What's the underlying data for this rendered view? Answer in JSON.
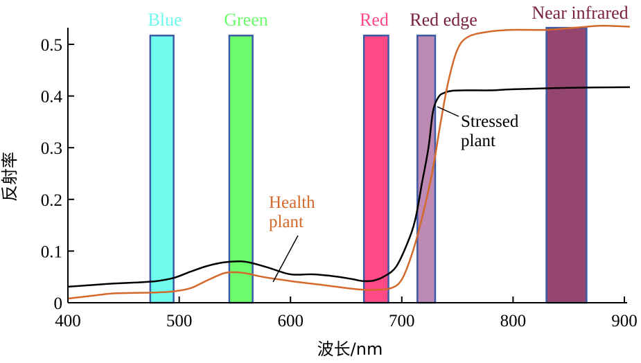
{
  "chart_data": {
    "type": "line",
    "xlabel": "波长/nm",
    "ylabel": "反射率",
    "xlim": [
      400,
      905
    ],
    "ylim": [
      0,
      0.55
    ],
    "x_ticks": [
      400,
      500,
      600,
      700,
      800,
      900
    ],
    "y_ticks": [
      0,
      0.1,
      0.2,
      0.3,
      0.4,
      0.5
    ],
    "y_tick_labels": [
      "0",
      "0.1",
      "0.2",
      "0.3",
      "0.4",
      "0.5"
    ],
    "grid": false,
    "bands": [
      {
        "label": "Blue",
        "x_start": 474,
        "x_end": 495,
        "top": 0.517,
        "color": "#6ffbee",
        "label_color": "#6ffbee"
      },
      {
        "label": "Green",
        "x_start": 545,
        "x_end": 566,
        "top": 0.517,
        "color": "#6bfb6b",
        "label_color": "#6bfb6b"
      },
      {
        "label": "Red",
        "x_start": 666,
        "x_end": 688,
        "top": 0.517,
        "color": "#ff4a86",
        "label_color": "#ff4a86"
      },
      {
        "label": "Red edge",
        "x_start": 714,
        "x_end": 730,
        "top": 0.517,
        "color": "#bc8ab4",
        "label_color": "#7a2040"
      },
      {
        "label": "Near infrared",
        "x_start": 830,
        "x_end": 866,
        "top": 0.532,
        "color": "#944670",
        "label_color": "#7a2040"
      }
    ],
    "series": [
      {
        "name": "Stressed plant",
        "color": "#000000",
        "x": [
          400,
          420,
          440,
          460,
          480,
          495,
          510,
          525,
          540,
          555,
          565,
          580,
          600,
          620,
          640,
          655,
          665,
          675,
          685,
          695,
          705,
          712,
          718,
          724,
          728,
          733,
          738,
          745,
          760,
          780,
          800,
          850,
          905
        ],
        "y": [
          0.031,
          0.034,
          0.037,
          0.039,
          0.042,
          0.048,
          0.06,
          0.071,
          0.078,
          0.08,
          0.077,
          0.068,
          0.055,
          0.055,
          0.051,
          0.046,
          0.042,
          0.043,
          0.052,
          0.07,
          0.115,
          0.16,
          0.23,
          0.3,
          0.37,
          0.398,
          0.406,
          0.41,
          0.411,
          0.411,
          0.413,
          0.416,
          0.417
        ]
      },
      {
        "name": "Health plant",
        "color": "#d4692c",
        "x": [
          400,
          420,
          440,
          460,
          480,
          495,
          510,
          525,
          540,
          550,
          560,
          575,
          600,
          630,
          660,
          675,
          690,
          700,
          710,
          720,
          728,
          735,
          742,
          750,
          760,
          780,
          800,
          830,
          860,
          880,
          905
        ],
        "y": [
          0.008,
          0.013,
          0.018,
          0.019,
          0.02,
          0.022,
          0.028,
          0.043,
          0.057,
          0.059,
          0.057,
          0.05,
          0.042,
          0.034,
          0.026,
          0.025,
          0.028,
          0.045,
          0.1,
          0.18,
          0.26,
          0.35,
          0.43,
          0.49,
          0.515,
          0.525,
          0.528,
          0.528,
          0.533,
          0.536,
          0.534
        ]
      }
    ],
    "annotations": [
      {
        "text_lines": [
          "Stressed",
          "plant"
        ],
        "color": "#000000"
      },
      {
        "text_lines": [
          "Health",
          "plant"
        ],
        "color": "#d4692c"
      }
    ]
  }
}
